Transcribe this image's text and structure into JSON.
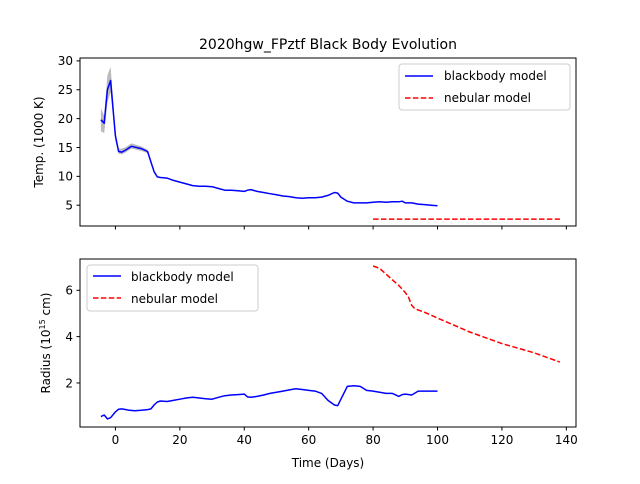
{
  "chart_data": [
    {
      "type": "line",
      "title": "2020hgw_FPztf Black Body Evolution",
      "ylabel": "Temp. (1000 K)",
      "xlabel": "",
      "xlim": [
        -11,
        143
      ],
      "ylim": [
        1.4,
        30.5
      ],
      "xticks": [
        0,
        20,
        40,
        60,
        80,
        100,
        120,
        140
      ],
      "yticks": [
        5,
        10,
        15,
        20,
        25,
        30
      ],
      "show_xtick_labels": false,
      "grid": false,
      "legend_position": "top-right",
      "series": [
        {
          "name": "blackbody model",
          "color": "#0000ff",
          "style": "solid",
          "x": [
            -4.5,
            -3.5,
            -2.5,
            -1.5,
            0,
            1,
            2,
            3,
            5,
            8,
            10,
            11,
            12,
            13,
            14,
            16,
            18,
            20,
            22,
            24,
            26,
            28,
            30,
            32,
            34,
            36,
            38,
            40,
            41,
            42,
            44,
            46,
            48,
            50,
            52,
            54,
            56,
            58,
            60,
            62,
            64,
            66,
            68,
            69,
            70,
            72,
            74,
            76,
            78,
            80,
            82,
            84,
            86,
            88,
            89,
            90,
            92,
            94,
            96,
            98,
            100
          ],
          "y": [
            19.8,
            19.2,
            25.0,
            26.6,
            17.0,
            14.3,
            14.2,
            14.5,
            15.2,
            14.8,
            14.3,
            12.5,
            10.8,
            9.9,
            9.8,
            9.7,
            9.3,
            9.0,
            8.7,
            8.4,
            8.3,
            8.3,
            8.2,
            7.9,
            7.6,
            7.6,
            7.5,
            7.4,
            7.6,
            7.7,
            7.4,
            7.2,
            7.0,
            6.8,
            6.6,
            6.5,
            6.3,
            6.2,
            6.3,
            6.3,
            6.4,
            6.7,
            7.2,
            7.1,
            6.4,
            5.7,
            5.4,
            5.4,
            5.4,
            5.5,
            5.6,
            5.5,
            5.6,
            5.6,
            5.7,
            5.4,
            5.4,
            5.2,
            5.1,
            5.0,
            4.9
          ],
          "band": {
            "x": [
              -4.5,
              -3.5,
              -2.5,
              -1.5,
              0,
              1,
              2,
              3,
              5,
              8,
              10,
              11,
              12
            ],
            "upper": [
              21.8,
              20.5,
              27.5,
              29.0,
              17.8,
              14.8,
              14.8,
              15.0,
              15.7,
              15.2,
              14.6,
              12.8,
              11.0
            ],
            "lower": [
              17.8,
              17.5,
              22.8,
              24.6,
              16.2,
              13.9,
              13.8,
              14.1,
              14.8,
              14.4,
              14.0,
              12.2,
              10.6
            ],
            "color": "#aaaaaa"
          }
        },
        {
          "name": "nebular model",
          "color": "#ff0000",
          "style": "dashed",
          "x": [
            80,
            138
          ],
          "y": [
            2.6,
            2.6
          ]
        }
      ],
      "legend": [
        "blackbody model",
        "nebular model"
      ]
    },
    {
      "type": "line",
      "title": "",
      "ylabel": "Radius (10^15 cm)",
      "ylabel_main": "Radius (10",
      "ylabel_sup": "15",
      "ylabel_tail": " cm)",
      "xlabel": "Time (Days)",
      "xlim": [
        -11,
        143
      ],
      "ylim": [
        0.1,
        7.35
      ],
      "xticks": [
        0,
        20,
        40,
        60,
        80,
        100,
        120,
        140
      ],
      "yticks": [
        2,
        4,
        6
      ],
      "show_xtick_labels": true,
      "grid": false,
      "legend_position": "top-left",
      "series": [
        {
          "name": "blackbody model",
          "color": "#0000ff",
          "style": "solid",
          "x": [
            -4.5,
            -3.5,
            -2.5,
            -1.5,
            0,
            1,
            2,
            4,
            6,
            8,
            10,
            11,
            12,
            13,
            14,
            16,
            18,
            20,
            22,
            24,
            26,
            28,
            30,
            32,
            34,
            36,
            38,
            40,
            41,
            42,
            44,
            46,
            48,
            50,
            52,
            54,
            56,
            58,
            60,
            62,
            64,
            66,
            68,
            69,
            70,
            72,
            74,
            76,
            78,
            80,
            82,
            84,
            86,
            88,
            89,
            90,
            92,
            94,
            96,
            98,
            100
          ],
          "y": [
            0.55,
            0.62,
            0.45,
            0.5,
            0.75,
            0.87,
            0.88,
            0.83,
            0.8,
            0.82,
            0.85,
            0.88,
            1.05,
            1.18,
            1.22,
            1.2,
            1.25,
            1.3,
            1.35,
            1.38,
            1.35,
            1.32,
            1.3,
            1.38,
            1.45,
            1.48,
            1.5,
            1.52,
            1.4,
            1.38,
            1.42,
            1.48,
            1.55,
            1.6,
            1.65,
            1.7,
            1.75,
            1.72,
            1.68,
            1.65,
            1.55,
            1.25,
            1.05,
            1.02,
            1.3,
            1.85,
            1.88,
            1.85,
            1.68,
            1.65,
            1.6,
            1.55,
            1.55,
            1.42,
            1.5,
            1.52,
            1.48,
            1.65,
            1.65,
            1.65,
            1.65
          ]
        },
        {
          "name": "nebular model",
          "color": "#ff0000",
          "style": "dashed",
          "x": [
            80,
            82,
            84,
            86,
            88,
            90,
            91,
            92,
            93,
            94,
            96,
            100,
            105,
            110,
            115,
            120,
            125,
            130,
            135,
            138
          ],
          "y": [
            7.05,
            6.95,
            6.7,
            6.45,
            6.2,
            5.9,
            5.7,
            5.35,
            5.2,
            5.15,
            5.05,
            4.8,
            4.5,
            4.2,
            3.95,
            3.7,
            3.5,
            3.3,
            3.05,
            2.9
          ]
        }
      ],
      "legend": [
        "blackbody model",
        "nebular model"
      ]
    }
  ]
}
